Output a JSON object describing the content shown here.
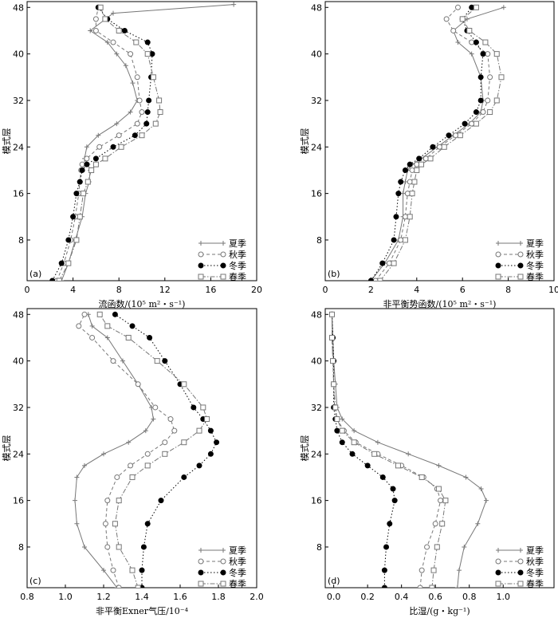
{
  "chart_data": [
    {
      "type": "line",
      "panel_tag": "(a)",
      "xlabel": "流函数/(10⁵ m²・s⁻¹)",
      "ylabel": "模式层",
      "xlim": [
        0,
        20
      ],
      "ylim": [
        1,
        49
      ],
      "xticks": [
        "0",
        "4",
        "8",
        "12",
        "16",
        "20"
      ],
      "yticks": [
        "8",
        "16",
        "24",
        "32",
        "40",
        "48"
      ],
      "xtick_values": [
        0,
        4,
        8,
        12,
        16,
        20
      ],
      "ytick_values": [
        8,
        16,
        24,
        32,
        40,
        48
      ],
      "legend_position": "bottom-right",
      "series": [
        {
          "name": "夏季",
          "marker": "plus",
          "dash": "solid",
          "color": "#777777",
          "x": [
            3.0,
            3.6,
            4.2,
            4.8,
            5.1,
            5.4,
            5.5,
            5.3,
            5.0,
            5.2,
            6.2,
            7.8,
            9.0,
            9.6,
            9.2,
            8.6,
            7.8,
            7.0,
            5.5,
            7.5,
            18.0
          ],
          "y": [
            1,
            4,
            8,
            12,
            16,
            18,
            20,
            21,
            22,
            24,
            26,
            28,
            30,
            32,
            35,
            38,
            40,
            42,
            44,
            47,
            48.5
          ]
        },
        {
          "name": "秋季",
          "marker": "circle-open",
          "dash": "dash",
          "color": "#777777",
          "x": [
            2.6,
            3.2,
            3.8,
            4.2,
            4.5,
            4.6,
            4.7,
            4.8,
            5.2,
            6.3,
            8.0,
            9.6,
            10.0,
            9.8,
            9.6,
            9.0,
            7.5,
            6.0,
            6.0,
            6.2
          ],
          "y": [
            1,
            4,
            8,
            12,
            16,
            18,
            20,
            21,
            22,
            24,
            26,
            28,
            30,
            32,
            36,
            40,
            42,
            44,
            46,
            48
          ]
        },
        {
          "name": "冬季",
          "marker": "circle-filled",
          "dash": "dot",
          "color": "#000000",
          "x": [
            2.2,
            3.0,
            3.6,
            4.0,
            4.3,
            4.6,
            4.8,
            5.2,
            6.0,
            7.5,
            9.4,
            10.4,
            10.5,
            10.6,
            10.8,
            10.9,
            10.5,
            8.5,
            7.0,
            6.2
          ],
          "y": [
            1,
            4,
            8,
            12,
            16,
            18,
            20,
            21,
            22,
            24,
            26,
            28,
            30,
            32,
            36,
            40,
            42,
            44,
            46,
            48
          ]
        },
        {
          "name": "春季",
          "marker": "square-open",
          "dash": "dashdot",
          "color": "#777777",
          "x": [
            2.8,
            3.6,
            4.3,
            4.6,
            4.9,
            5.3,
            5.6,
            6.0,
            6.8,
            8.2,
            10.0,
            11.2,
            11.6,
            11.5,
            11.0,
            10.5,
            9.5,
            8.0,
            6.8,
            6.4
          ],
          "y": [
            1,
            4,
            8,
            12,
            16,
            18,
            20,
            21,
            22,
            24,
            26,
            28,
            30,
            32,
            36,
            40,
            42,
            44,
            46,
            48
          ]
        }
      ]
    },
    {
      "type": "line",
      "panel_tag": "(b)",
      "xlabel": "非平衡势函数/(10⁵ m²・s⁻¹)",
      "ylabel": "模式层",
      "xlim": [
        0,
        10
      ],
      "ylim": [
        1,
        49
      ],
      "xticks": [
        "0",
        "2",
        "4",
        "6",
        "8",
        "10"
      ],
      "yticks": [
        "8",
        "16",
        "24",
        "32",
        "40",
        "48"
      ],
      "xtick_values": [
        0,
        2,
        4,
        6,
        8,
        10
      ],
      "ytick_values": [
        8,
        16,
        24,
        32,
        40,
        48
      ],
      "legend_position": "bottom-right",
      "series": [
        {
          "name": "夏季",
          "marker": "plus",
          "dash": "solid",
          "color": "#777777",
          "x": [
            2.0,
            2.6,
            3.2,
            3.4,
            3.4,
            3.5,
            3.6,
            3.8,
            4.2,
            4.9,
            5.6,
            6.3,
            6.8,
            6.9,
            6.8,
            6.4,
            5.8,
            5.6,
            6.2,
            7.8
          ],
          "y": [
            1,
            4,
            8,
            12,
            16,
            18,
            20,
            21,
            22,
            24,
            26,
            28,
            30,
            32,
            36,
            40,
            42,
            44,
            46,
            48
          ]
        },
        {
          "name": "秋季",
          "marker": "circle-open",
          "dash": "dash",
          "color": "#777777",
          "x": [
            2.2,
            2.8,
            3.3,
            3.5,
            3.6,
            3.7,
            3.8,
            4.0,
            4.4,
            5.0,
            5.7,
            6.4,
            6.9,
            7.1,
            7.2,
            7.1,
            6.4,
            5.6,
            5.3,
            5.8
          ],
          "y": [
            1,
            4,
            8,
            12,
            16,
            18,
            20,
            21,
            22,
            24,
            26,
            28,
            30,
            32,
            36,
            40,
            42,
            44,
            46,
            48
          ]
        },
        {
          "name": "冬季",
          "marker": "circle-filled",
          "dash": "dot",
          "color": "#000000",
          "x": [
            2.0,
            2.5,
            3.0,
            3.1,
            3.2,
            3.3,
            3.5,
            3.7,
            4.1,
            4.7,
            5.4,
            6.1,
            6.6,
            6.8,
            6.8,
            6.9,
            6.6,
            6.2,
            6.0,
            6.4
          ],
          "y": [
            1,
            4,
            8,
            12,
            16,
            18,
            20,
            21,
            22,
            24,
            26,
            28,
            30,
            32,
            36,
            40,
            42,
            44,
            46,
            48
          ]
        },
        {
          "name": "春季",
          "marker": "square-open",
          "dash": "dashdot",
          "color": "#777777",
          "x": [
            2.4,
            3.0,
            3.5,
            3.7,
            3.8,
            3.9,
            4.0,
            4.2,
            4.6,
            5.2,
            5.9,
            6.6,
            7.2,
            7.5,
            7.7,
            7.5,
            7.0,
            6.3,
            6.0,
            6.6
          ],
          "y": [
            1,
            4,
            8,
            12,
            16,
            18,
            20,
            21,
            22,
            24,
            26,
            28,
            30,
            32,
            36,
            40,
            42,
            44,
            46,
            48
          ]
        }
      ]
    },
    {
      "type": "line",
      "panel_tag": "(c)",
      "xlabel": "非平衡Exner气压/10⁻⁴",
      "ylabel": "模式层",
      "xlim": [
        0.8,
        2.0
      ],
      "ylim": [
        1,
        49
      ],
      "xticks": [
        "0.8",
        "1.0",
        "1.2",
        "1.4",
        "1.6",
        "1.8",
        "2.0"
      ],
      "yticks": [
        "8",
        "16",
        "24",
        "32",
        "40",
        "48"
      ],
      "xtick_values": [
        0.8,
        1.0,
        1.2,
        1.4,
        1.6,
        1.8,
        2.0
      ],
      "ytick_values": [
        8,
        16,
        24,
        32,
        40,
        48
      ],
      "legend_position": "bottom-right",
      "series": [
        {
          "name": "夏季",
          "marker": "plus",
          "dash": "solid",
          "color": "#777777",
          "x": [
            1.27,
            1.2,
            1.1,
            1.06,
            1.05,
            1.06,
            1.1,
            1.2,
            1.33,
            1.42,
            1.46,
            1.45,
            1.38,
            1.3,
            1.22,
            1.14,
            1.12
          ],
          "y": [
            1,
            4,
            8,
            12,
            16,
            20,
            22,
            24,
            26,
            28,
            30,
            32,
            36,
            40,
            44,
            46,
            48
          ]
        },
        {
          "name": "秋季",
          "marker": "circle-open",
          "dash": "dash",
          "color": "#777777",
          "x": [
            1.28,
            1.25,
            1.22,
            1.21,
            1.22,
            1.27,
            1.34,
            1.43,
            1.52,
            1.57,
            1.55,
            1.47,
            1.38,
            1.25,
            1.14,
            1.07,
            1.1
          ],
          "y": [
            1,
            4,
            8,
            12,
            16,
            20,
            22,
            24,
            26,
            28,
            30,
            32,
            36,
            40,
            44,
            46,
            48
          ]
        },
        {
          "name": "冬季",
          "marker": "circle-filled",
          "dash": "dot",
          "color": "#000000",
          "x": [
            1.4,
            1.4,
            1.41,
            1.43,
            1.5,
            1.62,
            1.7,
            1.76,
            1.79,
            1.76,
            1.72,
            1.67,
            1.6,
            1.52,
            1.44,
            1.35,
            1.26
          ],
          "y": [
            1,
            4,
            8,
            12,
            16,
            20,
            22,
            24,
            26,
            28,
            30,
            32,
            36,
            40,
            44,
            46,
            48
          ]
        },
        {
          "name": "春季",
          "marker": "square-open",
          "dash": "dashdot",
          "color": "#777777",
          "x": [
            1.38,
            1.35,
            1.28,
            1.26,
            1.28,
            1.35,
            1.43,
            1.52,
            1.62,
            1.7,
            1.74,
            1.72,
            1.62,
            1.48,
            1.33,
            1.22,
            1.18
          ],
          "y": [
            1,
            4,
            8,
            12,
            16,
            20,
            22,
            24,
            26,
            28,
            30,
            32,
            36,
            40,
            44,
            46,
            48
          ]
        }
      ]
    },
    {
      "type": "line",
      "panel_tag": "(d)",
      "xlabel": "比湿/(g・kg⁻¹)",
      "ylabel": "模式层",
      "xlim": [
        -0.05,
        1.3
      ],
      "ylim": [
        1,
        49
      ],
      "xticks": [
        "0.0",
        "0.2",
        "0.4",
        "0.6",
        "0.8",
        "1.0"
      ],
      "yticks": [
        "8",
        "16",
        "24",
        "32",
        "40",
        "48"
      ],
      "xtick_values": [
        0.0,
        0.2,
        0.4,
        0.6,
        0.8,
        1.0
      ],
      "ytick_values": [
        8,
        16,
        24,
        32,
        40,
        48
      ],
      "legend_position": "bottom-right",
      "series": [
        {
          "name": "夏季",
          "marker": "plus",
          "dash": "solid",
          "color": "#777777",
          "x": [
            0.73,
            0.74,
            0.77,
            0.85,
            0.9,
            0.87,
            0.78,
            0.62,
            0.44,
            0.26,
            0.12,
            0.05,
            0.02,
            0.01,
            0.0,
            -0.005,
            -0.01
          ],
          "y": [
            1,
            4,
            8,
            12,
            16,
            18,
            20,
            22,
            24,
            26,
            28,
            30,
            32,
            36,
            40,
            44,
            48
          ]
        },
        {
          "name": "秋季",
          "marker": "circle-open",
          "dash": "dash",
          "color": "#777777",
          "x": [
            0.51,
            0.52,
            0.55,
            0.6,
            0.63,
            0.61,
            0.53,
            0.4,
            0.26,
            0.13,
            0.06,
            0.02,
            0.005,
            0.0,
            -0.005,
            -0.01,
            -0.01
          ],
          "y": [
            1,
            4,
            8,
            12,
            16,
            18,
            20,
            22,
            24,
            26,
            28,
            30,
            32,
            36,
            40,
            44,
            48
          ]
        },
        {
          "name": "冬季",
          "marker": "circle-filled",
          "dash": "dot",
          "color": "#000000",
          "x": [
            0.3,
            0.3,
            0.31,
            0.33,
            0.36,
            0.35,
            0.29,
            0.2,
            0.11,
            0.05,
            0.02,
            0.01,
            0.0,
            0.0,
            0.0,
            -0.005,
            -0.01
          ],
          "y": [
            1,
            4,
            8,
            12,
            16,
            18,
            20,
            22,
            24,
            26,
            28,
            30,
            32,
            36,
            40,
            44,
            48
          ]
        },
        {
          "name": "春季",
          "marker": "square-open",
          "dash": "dashdot",
          "color": "#777777",
          "x": [
            0.58,
            0.59,
            0.61,
            0.64,
            0.66,
            0.62,
            0.52,
            0.38,
            0.24,
            0.12,
            0.05,
            0.02,
            0.01,
            0.0,
            -0.005,
            -0.01,
            -0.01
          ],
          "y": [
            1,
            4,
            8,
            12,
            16,
            18,
            20,
            22,
            24,
            26,
            28,
            30,
            32,
            36,
            40,
            44,
            48
          ]
        }
      ]
    }
  ]
}
